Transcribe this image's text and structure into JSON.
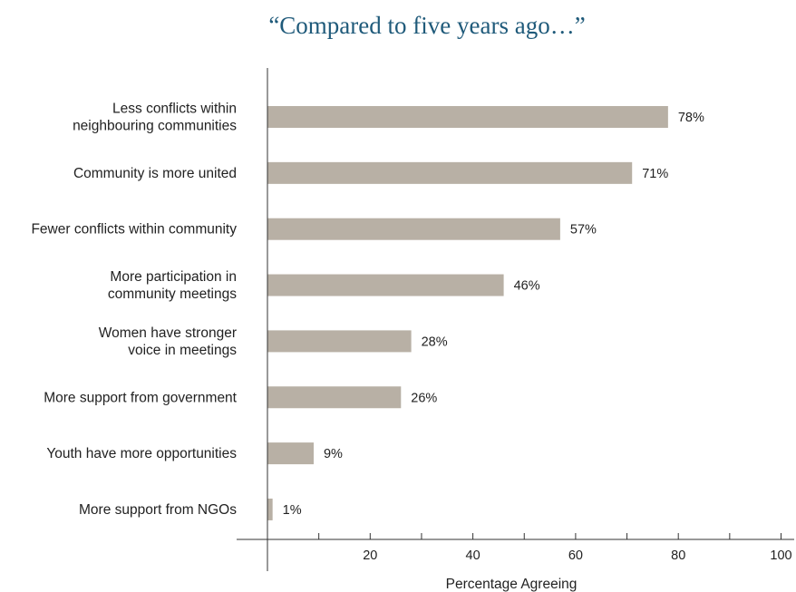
{
  "chart_data": {
    "type": "bar",
    "orientation": "horizontal",
    "title": "“Compared to five years ago…”",
    "xlabel": "Percentage Agreeing",
    "ylabel": "",
    "xlim": [
      0,
      100
    ],
    "x_ticks": [
      20,
      40,
      60,
      80,
      100
    ],
    "grid": false,
    "bar_color": "#b8b0a5",
    "title_color": "#1f5a7a",
    "categories": [
      [
        "Less conflicts within",
        "neighbouring communities"
      ],
      [
        "Community is more united"
      ],
      [
        "Fewer conflicts within community"
      ],
      [
        "More participation in",
        "community meetings"
      ],
      [
        "Women have stronger",
        "voice in meetings"
      ],
      [
        "More support from government"
      ],
      [
        "Youth have more opportunities"
      ],
      [
        "More support from NGOs"
      ]
    ],
    "values": [
      78,
      71,
      57,
      46,
      28,
      26,
      9,
      1
    ],
    "value_labels": [
      "78%",
      "71%",
      "57%",
      "46%",
      "28%",
      "26%",
      "9%",
      "1%"
    ]
  }
}
